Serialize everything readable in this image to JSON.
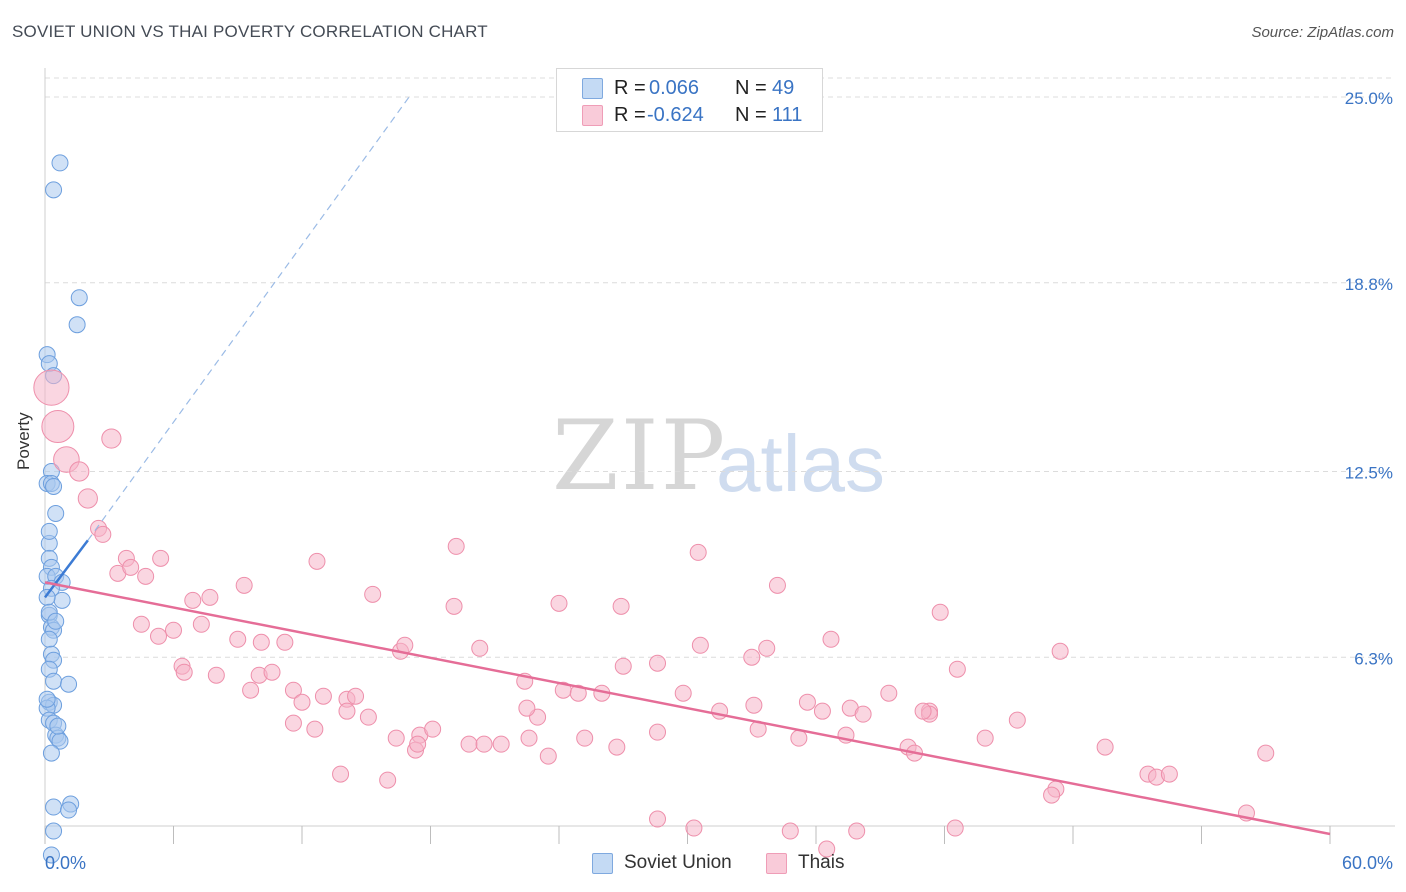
{
  "header": {
    "title": "SOVIET UNION VS THAI POVERTY CORRELATION CHART",
    "source": "Source: ZipAtlas.com"
  },
  "watermark": {
    "zip": "ZIP",
    "atlas": "atlas"
  },
  "stats": [
    {
      "r_label": "R =",
      "r_value": "0.066",
      "n_label": "N =",
      "n_value": "49",
      "color": "#a9c8ef"
    },
    {
      "r_label": "R =",
      "r_value": "-0.624",
      "n_label": "N =",
      "n_value": "111",
      "color": "#f6b5c8"
    }
  ],
  "legend": [
    {
      "label": "Soviet Union",
      "color": "#a9c8ef"
    },
    {
      "label": "Thais",
      "color": "#f6b5c8"
    }
  ],
  "chart_data": {
    "type": "scatter",
    "ylabel": "Poverty",
    "xlim": [
      0,
      60
    ],
    "ylim": [
      0,
      25
    ],
    "x_tick_labels": [
      "0.0%",
      "60.0%"
    ],
    "y_ticks": [
      {
        "value": 25.0,
        "label": "25.0%"
      },
      {
        "value": 18.8,
        "label": "18.8%"
      },
      {
        "value": 12.5,
        "label": "12.5%"
      },
      {
        "value": 6.3,
        "label": "6.3%"
      }
    ],
    "grid": true,
    "series": [
      {
        "name": "Soviet Union",
        "color": "#a9c8ef",
        "stroke": "#6d9fde",
        "trend": {
          "x1": 0,
          "y1": 8.3,
          "x2": 2.0,
          "y2": 10.2,
          "color": "#3c7bd4"
        },
        "trend_extended": {
          "x1": 2.0,
          "y1": 10.2,
          "x2": 17.0,
          "y2": 25.0
        },
        "points": [
          {
            "x": 0.7,
            "y": 22.8,
            "s": 1
          },
          {
            "x": 0.4,
            "y": 21.9,
            "s": 1
          },
          {
            "x": 1.6,
            "y": 18.3,
            "s": 1
          },
          {
            "x": 1.5,
            "y": 17.4,
            "s": 1
          },
          {
            "x": 0.1,
            "y": 16.4,
            "s": 1
          },
          {
            "x": 0.2,
            "y": 16.1,
            "s": 1
          },
          {
            "x": 0.4,
            "y": 15.7,
            "s": 1
          },
          {
            "x": 0.3,
            "y": 12.5,
            "s": 1
          },
          {
            "x": 0.1,
            "y": 12.1,
            "s": 1
          },
          {
            "x": 0.3,
            "y": 12.1,
            "s": 1
          },
          {
            "x": 0.4,
            "y": 12.0,
            "s": 1
          },
          {
            "x": 0.5,
            "y": 11.1,
            "s": 1
          },
          {
            "x": 0.2,
            "y": 10.1,
            "s": 1
          },
          {
            "x": 0.2,
            "y": 9.6,
            "s": 1
          },
          {
            "x": 0.3,
            "y": 9.3,
            "s": 1
          },
          {
            "x": 0.1,
            "y": 9.0,
            "s": 1
          },
          {
            "x": 0.5,
            "y": 9.0,
            "s": 1
          },
          {
            "x": 0.8,
            "y": 8.8,
            "s": 1
          },
          {
            "x": 0.3,
            "y": 8.6,
            "s": 1
          },
          {
            "x": 0.8,
            "y": 8.2,
            "s": 1
          },
          {
            "x": 0.2,
            "y": 7.7,
            "s": 1
          },
          {
            "x": 0.3,
            "y": 7.3,
            "s": 1
          },
          {
            "x": 0.4,
            "y": 7.2,
            "s": 1
          },
          {
            "x": 0.2,
            "y": 6.9,
            "s": 1
          },
          {
            "x": 0.3,
            "y": 6.4,
            "s": 1
          },
          {
            "x": 0.4,
            "y": 6.2,
            "s": 1
          },
          {
            "x": 0.2,
            "y": 5.9,
            "s": 1
          },
          {
            "x": 0.4,
            "y": 5.5,
            "s": 1
          },
          {
            "x": 1.1,
            "y": 5.4,
            "s": 1
          },
          {
            "x": 0.2,
            "y": 4.8,
            "s": 1
          },
          {
            "x": 0.4,
            "y": 4.7,
            "s": 1
          },
          {
            "x": 0.1,
            "y": 4.6,
            "s": 1
          },
          {
            "x": 0.2,
            "y": 4.2,
            "s": 1
          },
          {
            "x": 0.4,
            "y": 4.1,
            "s": 1
          },
          {
            "x": 0.5,
            "y": 3.7,
            "s": 1
          },
          {
            "x": 0.6,
            "y": 3.6,
            "s": 1
          },
          {
            "x": 0.7,
            "y": 3.5,
            "s": 1
          },
          {
            "x": 1.2,
            "y": 1.4,
            "s": 1
          },
          {
            "x": 0.4,
            "y": 1.3,
            "s": 1
          },
          {
            "x": 1.1,
            "y": 1.2,
            "s": 1
          },
          {
            "x": 0.4,
            "y": 0.5,
            "s": 1
          },
          {
            "x": 0.3,
            "y": -0.3,
            "s": 1
          },
          {
            "x": 0.1,
            "y": 8.3,
            "s": 1
          },
          {
            "x": 0.2,
            "y": 7.8,
            "s": 1
          },
          {
            "x": 0.1,
            "y": 4.9,
            "s": 1
          },
          {
            "x": 0.3,
            "y": 3.1,
            "s": 1
          },
          {
            "x": 0.2,
            "y": 10.5,
            "s": 1
          },
          {
            "x": 0.5,
            "y": 7.5,
            "s": 1
          },
          {
            "x": 0.6,
            "y": 4.0,
            "s": 1
          }
        ]
      },
      {
        "name": "Thais",
        "color": "#f6b5c8",
        "stroke": "#ee8fab",
        "trend": {
          "x1": 0,
          "y1": 8.8,
          "x2": 60,
          "y2": 0.4,
          "color": "#e56d97"
        },
        "points": [
          {
            "x": 0.3,
            "y": 15.3,
            "s": 2.2
          },
          {
            "x": 0.6,
            "y": 14.0,
            "s": 2.0
          },
          {
            "x": 1.0,
            "y": 12.9,
            "s": 1.6
          },
          {
            "x": 1.6,
            "y": 12.5,
            "s": 1.2
          },
          {
            "x": 3.1,
            "y": 13.6,
            "s": 1.2
          },
          {
            "x": 2.0,
            "y": 11.6,
            "s": 1.2
          },
          {
            "x": 2.5,
            "y": 10.6,
            "s": 1
          },
          {
            "x": 2.7,
            "y": 10.4,
            "s": 1
          },
          {
            "x": 3.8,
            "y": 9.6,
            "s": 1
          },
          {
            "x": 3.4,
            "y": 9.1,
            "s": 1
          },
          {
            "x": 4.0,
            "y": 9.3,
            "s": 1
          },
          {
            "x": 4.7,
            "y": 9.0,
            "s": 1
          },
          {
            "x": 5.4,
            "y": 9.6,
            "s": 1
          },
          {
            "x": 6.9,
            "y": 8.2,
            "s": 1
          },
          {
            "x": 7.7,
            "y": 8.3,
            "s": 1
          },
          {
            "x": 9.3,
            "y": 8.7,
            "s": 1
          },
          {
            "x": 12.7,
            "y": 9.5,
            "s": 1
          },
          {
            "x": 15.3,
            "y": 8.4,
            "s": 1
          },
          {
            "x": 19.1,
            "y": 8.0,
            "s": 1
          },
          {
            "x": 19.2,
            "y": 10.0,
            "s": 1
          },
          {
            "x": 24.0,
            "y": 8.1,
            "s": 1
          },
          {
            "x": 26.9,
            "y": 8.0,
            "s": 1
          },
          {
            "x": 30.5,
            "y": 9.8,
            "s": 1
          },
          {
            "x": 34.2,
            "y": 8.7,
            "s": 1
          },
          {
            "x": 41.8,
            "y": 7.8,
            "s": 1
          },
          {
            "x": 4.5,
            "y": 7.4,
            "s": 1
          },
          {
            "x": 5.3,
            "y": 7.0,
            "s": 1
          },
          {
            "x": 6.0,
            "y": 7.2,
            "s": 1
          },
          {
            "x": 7.3,
            "y": 7.4,
            "s": 1
          },
          {
            "x": 9.0,
            "y": 6.9,
            "s": 1
          },
          {
            "x": 10.1,
            "y": 6.8,
            "s": 1
          },
          {
            "x": 11.2,
            "y": 6.8,
            "s": 1
          },
          {
            "x": 16.6,
            "y": 6.5,
            "s": 1
          },
          {
            "x": 16.8,
            "y": 6.7,
            "s": 1
          },
          {
            "x": 20.3,
            "y": 6.6,
            "s": 1
          },
          {
            "x": 22.4,
            "y": 5.5,
            "s": 1
          },
          {
            "x": 27.0,
            "y": 6.0,
            "s": 1
          },
          {
            "x": 28.6,
            "y": 6.1,
            "s": 1
          },
          {
            "x": 30.6,
            "y": 6.7,
            "s": 1
          },
          {
            "x": 33.7,
            "y": 6.6,
            "s": 1
          },
          {
            "x": 36.7,
            "y": 6.9,
            "s": 1
          },
          {
            "x": 42.6,
            "y": 5.9,
            "s": 1
          },
          {
            "x": 47.4,
            "y": 6.5,
            "s": 1
          },
          {
            "x": 6.4,
            "y": 6.0,
            "s": 1
          },
          {
            "x": 6.5,
            "y": 5.8,
            "s": 1
          },
          {
            "x": 8.0,
            "y": 5.7,
            "s": 1
          },
          {
            "x": 9.6,
            "y": 5.2,
            "s": 1
          },
          {
            "x": 10.0,
            "y": 5.7,
            "s": 1
          },
          {
            "x": 10.6,
            "y": 5.8,
            "s": 1
          },
          {
            "x": 11.6,
            "y": 5.2,
            "s": 1
          },
          {
            "x": 12.0,
            "y": 4.8,
            "s": 1
          },
          {
            "x": 13.0,
            "y": 5.0,
            "s": 1
          },
          {
            "x": 14.1,
            "y": 4.9,
            "s": 1
          },
          {
            "x": 14.5,
            "y": 5.0,
            "s": 1
          },
          {
            "x": 14.1,
            "y": 4.5,
            "s": 1
          },
          {
            "x": 11.6,
            "y": 4.1,
            "s": 1
          },
          {
            "x": 12.6,
            "y": 3.9,
            "s": 1
          },
          {
            "x": 15.1,
            "y": 4.3,
            "s": 1
          },
          {
            "x": 16.4,
            "y": 3.6,
            "s": 1
          },
          {
            "x": 17.5,
            "y": 3.7,
            "s": 1
          },
          {
            "x": 18.1,
            "y": 3.9,
            "s": 1
          },
          {
            "x": 19.8,
            "y": 3.4,
            "s": 1
          },
          {
            "x": 20.5,
            "y": 3.4,
            "s": 1
          },
          {
            "x": 17.3,
            "y": 3.2,
            "s": 1
          },
          {
            "x": 16.0,
            "y": 2.2,
            "s": 1
          },
          {
            "x": 23.0,
            "y": 4.3,
            "s": 1
          },
          {
            "x": 22.5,
            "y": 4.6,
            "s": 1
          },
          {
            "x": 24.2,
            "y": 5.2,
            "s": 1
          },
          {
            "x": 24.9,
            "y": 5.1,
            "s": 1
          },
          {
            "x": 26.0,
            "y": 5.1,
            "s": 1
          },
          {
            "x": 21.3,
            "y": 3.4,
            "s": 1
          },
          {
            "x": 22.6,
            "y": 3.6,
            "s": 1
          },
          {
            "x": 23.5,
            "y": 3.0,
            "s": 1
          },
          {
            "x": 25.2,
            "y": 3.6,
            "s": 1
          },
          {
            "x": 26.7,
            "y": 3.3,
            "s": 1
          },
          {
            "x": 28.6,
            "y": 3.8,
            "s": 1
          },
          {
            "x": 29.8,
            "y": 5.1,
            "s": 1
          },
          {
            "x": 31.5,
            "y": 4.5,
            "s": 1
          },
          {
            "x": 33.1,
            "y": 4.7,
            "s": 1
          },
          {
            "x": 35.6,
            "y": 4.8,
            "s": 1
          },
          {
            "x": 33.3,
            "y": 3.9,
            "s": 1
          },
          {
            "x": 35.2,
            "y": 3.6,
            "s": 1
          },
          {
            "x": 36.3,
            "y": 4.5,
            "s": 1
          },
          {
            "x": 37.4,
            "y": 3.7,
            "s": 1
          },
          {
            "x": 37.6,
            "y": 4.6,
            "s": 1
          },
          {
            "x": 38.2,
            "y": 4.4,
            "s": 1
          },
          {
            "x": 39.4,
            "y": 5.1,
            "s": 1
          },
          {
            "x": 40.3,
            "y": 3.3,
            "s": 1
          },
          {
            "x": 41.3,
            "y": 4.5,
            "s": 1
          },
          {
            "x": 45.4,
            "y": 4.2,
            "s": 1
          },
          {
            "x": 43.9,
            "y": 3.6,
            "s": 1
          },
          {
            "x": 49.5,
            "y": 3.3,
            "s": 1
          },
          {
            "x": 40.6,
            "y": 3.1,
            "s": 1
          },
          {
            "x": 57.0,
            "y": 3.1,
            "s": 1
          },
          {
            "x": 47.2,
            "y": 1.9,
            "s": 1
          },
          {
            "x": 47.0,
            "y": 1.7,
            "s": 1
          },
          {
            "x": 51.5,
            "y": 2.4,
            "s": 1
          },
          {
            "x": 51.9,
            "y": 2.3,
            "s": 1
          },
          {
            "x": 52.5,
            "y": 2.4,
            "s": 1
          },
          {
            "x": 28.6,
            "y": 0.9,
            "s": 1
          },
          {
            "x": 30.3,
            "y": 0.6,
            "s": 1
          },
          {
            "x": 34.8,
            "y": 0.5,
            "s": 1
          },
          {
            "x": 36.5,
            "y": -0.1,
            "s": 1
          },
          {
            "x": 37.9,
            "y": 0.5,
            "s": 1
          },
          {
            "x": 42.5,
            "y": 0.6,
            "s": 1
          },
          {
            "x": 56.1,
            "y": 1.1,
            "s": 1
          },
          {
            "x": 41.3,
            "y": 4.4,
            "s": 1
          },
          {
            "x": 13.8,
            "y": 2.4,
            "s": 1
          },
          {
            "x": 41.0,
            "y": 4.5,
            "s": 1
          },
          {
            "x": 33.0,
            "y": 6.3,
            "s": 1
          },
          {
            "x": 17.4,
            "y": 3.4,
            "s": 1
          }
        ]
      }
    ]
  }
}
